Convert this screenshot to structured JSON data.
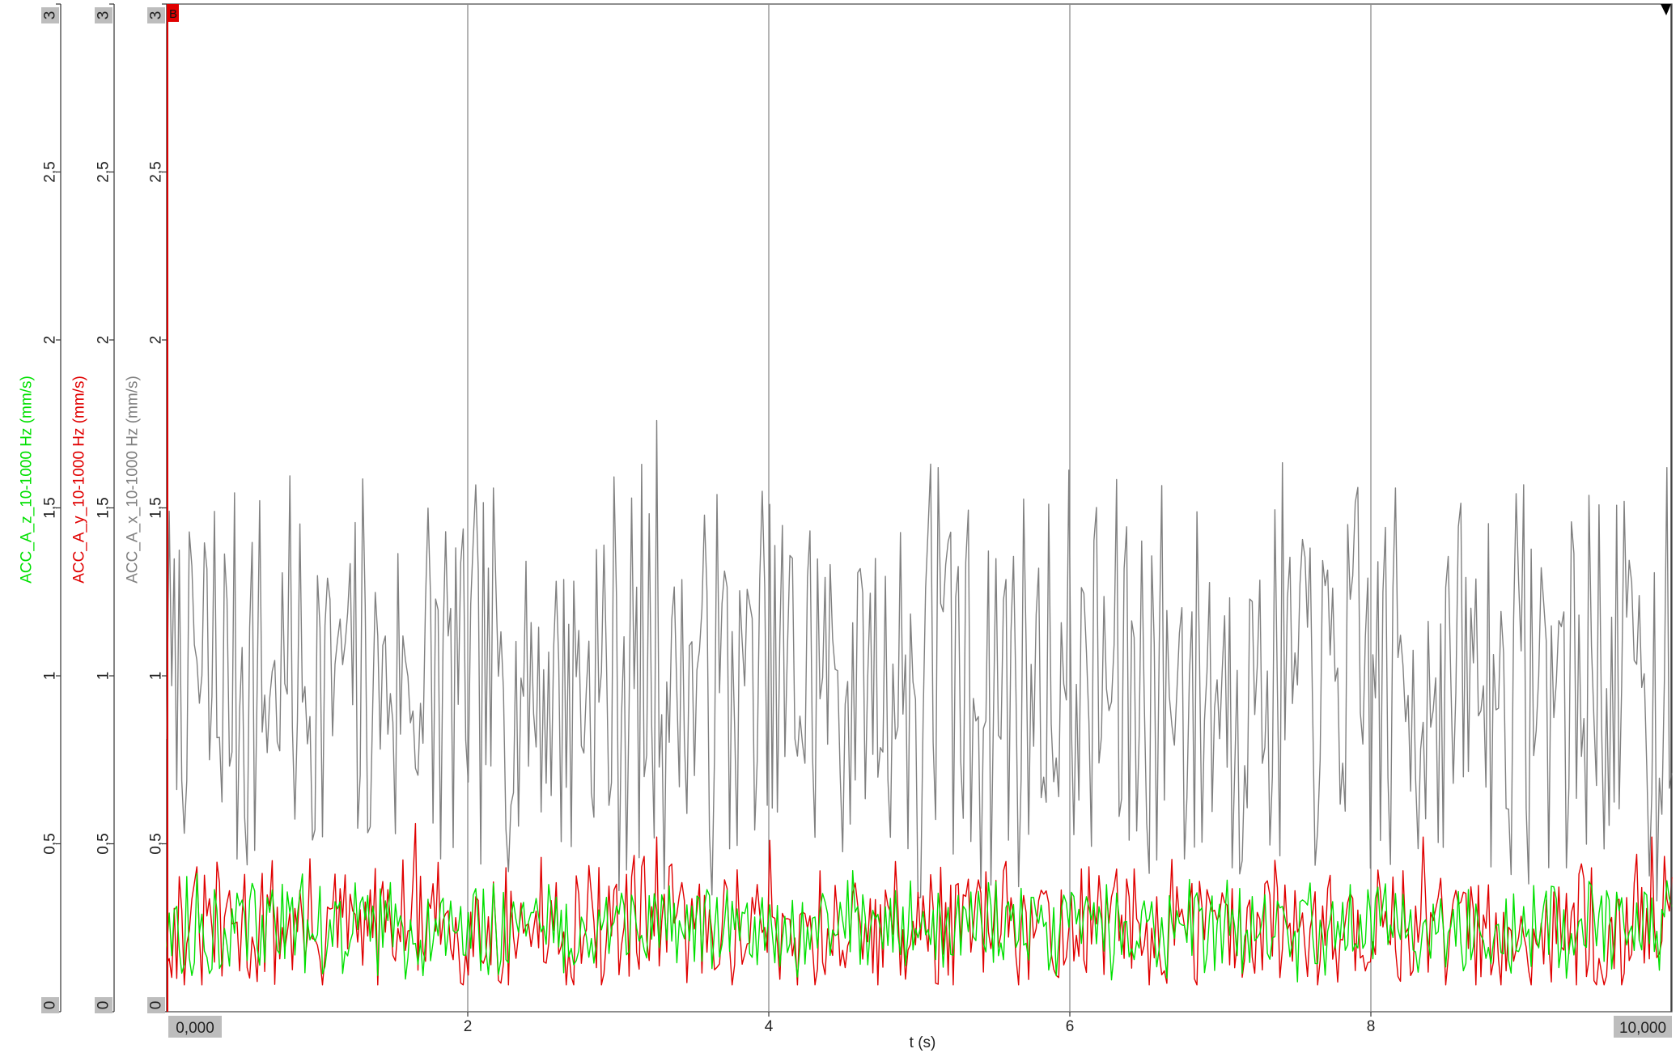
{
  "chart_data": {
    "type": "line",
    "x": {
      "label": "t (s)",
      "range": [
        0,
        10
      ],
      "ticks": [
        "2",
        "4",
        "6",
        "8"
      ],
      "tick_values": [
        2,
        4,
        6,
        8
      ],
      "start_label": "0,000",
      "end_label": "10,000",
      "grid": true
    },
    "y_axes": [
      {
        "series": "ACC_A_z_10-1000 Hz (mm/s)",
        "color": "#00e000",
        "range": [
          0,
          3
        ],
        "ticks": [
          "0",
          "0,5",
          "1",
          "1,5",
          "2",
          "2,5",
          "3"
        ],
        "tick_values": [
          0,
          0.5,
          1,
          1.5,
          2,
          2.5,
          3
        ],
        "boxed_ticks": [
          "0",
          "3"
        ]
      },
      {
        "series": "ACC_A_y_10-1000 Hz (mm/s)",
        "color": "#e00000",
        "range": [
          0,
          3
        ],
        "ticks": [
          "0",
          "0,5",
          "1",
          "1,5",
          "2",
          "2,5",
          "3"
        ],
        "tick_values": [
          0,
          0.5,
          1,
          1.5,
          2,
          2.5,
          3
        ],
        "boxed_ticks": [
          "0",
          "3"
        ]
      },
      {
        "series": "ACC_A_x_10-1000 Hz (mm/s)",
        "color": "#808080",
        "range": [
          0,
          3
        ],
        "ticks": [
          "0",
          "0,5",
          "1",
          "1,5",
          "2",
          "2,5",
          "3"
        ],
        "tick_values": [
          0,
          0.5,
          1,
          1.5,
          2,
          2.5,
          3
        ],
        "boxed_ticks": [
          "0",
          "3"
        ]
      }
    ],
    "series": [
      {
        "name": "ACC_A_x_10-1000 Hz (mm/s)",
        "color": "#808080",
        "sample_count": 600,
        "mean": 0.98,
        "min": 0.33,
        "max": 1.76,
        "peaks": [
          {
            "t": 0.02,
            "v": 1.49
          },
          {
            "t": 3.25,
            "v": 1.76
          },
          {
            "t": 5.07,
            "v": 1.63
          },
          {
            "t": 5.12,
            "v": 1.62
          },
          {
            "t": 9.97,
            "v": 1.62
          }
        ],
        "troughs": [
          {
            "t": 5.0,
            "v": 0.34
          },
          {
            "t": 9.9,
            "v": 0.33
          }
        ]
      },
      {
        "name": "ACC_A_y_10-1000 Hz (mm/s)",
        "color": "#e00000",
        "sample_count": 600,
        "mean": 0.25,
        "min": 0.08,
        "max": 0.56,
        "peaks": [
          {
            "t": 1.65,
            "v": 0.56
          },
          {
            "t": 3.25,
            "v": 0.52
          },
          {
            "t": 4.0,
            "v": 0.51
          },
          {
            "t": 8.35,
            "v": 0.52
          },
          {
            "t": 9.87,
            "v": 0.52
          }
        ]
      },
      {
        "name": "ACC_A_z_10-1000 Hz (mm/s)",
        "color": "#00e000",
        "sample_count": 600,
        "mean": 0.25,
        "min": 0.07,
        "max": 0.42,
        "peaks": [
          {
            "t": 0.9,
            "v": 0.41
          },
          {
            "t": 4.55,
            "v": 0.42
          },
          {
            "t": 9.97,
            "v": 0.39
          }
        ]
      }
    ],
    "cursors": [
      {
        "label": "B",
        "t": 0.0,
        "color": "#e00000"
      },
      {
        "t": 10.0,
        "color": "#000000"
      }
    ]
  }
}
